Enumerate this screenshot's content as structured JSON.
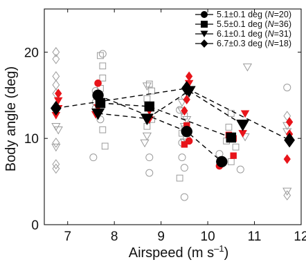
{
  "chart_data": {
    "type": "scatter",
    "title": "",
    "xlabel": "Airspeed (m s–1)",
    "xlabel_parts": [
      "Airspeed (m s",
      "–1",
      ")"
    ],
    "ylabel": "Body angle (deg)",
    "xlim": [
      6.5,
      12
    ],
    "ylim": [
      0,
      25
    ],
    "xticks": [
      "7",
      "8",
      "9",
      "10",
      "11",
      "12"
    ],
    "yticks": [
      "0",
      "10",
      "20"
    ],
    "grid": false,
    "legend_position": "top-right",
    "colors": {
      "axis": "#111111",
      "individual_gray": "#9a9a9a",
      "individual_red": "#e8141a",
      "mean_black": "#000000"
    },
    "series": [
      {
        "name": "5.1±0.1 deg (N=20)",
        "legend_parts": [
          "5.1±0.1 deg (",
          "N",
          "=20)"
        ],
        "marker": "circle",
        "mean_points": [
          {
            "x": 7.65,
            "y": 15.0
          },
          {
            "x": 9.55,
            "y": 10.8
          },
          {
            "x": 10.3,
            "y": 7.3
          }
        ],
        "individual_gray": [
          {
            "x": 7.6,
            "y": 15.5
          },
          {
            "x": 7.6,
            "y": 14.2
          },
          {
            "x": 7.6,
            "y": 13.5
          },
          {
            "x": 7.7,
            "y": 12.2
          },
          {
            "x": 7.55,
            "y": 7.8
          },
          {
            "x": 7.75,
            "y": 19.8
          },
          {
            "x": 8.75,
            "y": 7.8
          },
          {
            "x": 8.75,
            "y": 6.0
          },
          {
            "x": 9.4,
            "y": 13.3
          },
          {
            "x": 9.45,
            "y": 9.5
          },
          {
            "x": 9.45,
            "y": 7.8
          },
          {
            "x": 9.5,
            "y": 6.6
          },
          {
            "x": 9.5,
            "y": 3.2
          },
          {
            "x": 9.55,
            "y": 10.0
          },
          {
            "x": 10.25,
            "y": 8.2
          },
          {
            "x": 10.7,
            "y": 6.4
          },
          {
            "x": 11.7,
            "y": 15.9
          }
        ],
        "individual_red": [
          {
            "x": 7.65,
            "y": 16.4
          },
          {
            "x": 9.6,
            "y": 9.7
          },
          {
            "x": 10.25,
            "y": 6.8
          }
        ]
      },
      {
        "name": "5.5±0.1 deg (N=36)",
        "legend_parts": [
          "5.5±0.1 deg (",
          "N",
          "=36)"
        ],
        "marker": "square",
        "mean_points": [
          {
            "x": 7.7,
            "y": 14.1
          },
          {
            "x": 8.75,
            "y": 13.7
          },
          {
            "x": 10.5,
            "y": 10.1
          }
        ],
        "individual_gray": [
          {
            "x": 7.7,
            "y": 19.6
          },
          {
            "x": 7.75,
            "y": 18.4
          },
          {
            "x": 7.75,
            "y": 17.0
          },
          {
            "x": 7.7,
            "y": 15.8
          },
          {
            "x": 7.75,
            "y": 11.0
          },
          {
            "x": 7.8,
            "y": 9.1
          },
          {
            "x": 8.75,
            "y": 16.3
          },
          {
            "x": 8.8,
            "y": 15.5
          },
          {
            "x": 8.7,
            "y": 14.6
          },
          {
            "x": 8.8,
            "y": 12.2
          },
          {
            "x": 8.7,
            "y": 11.4
          },
          {
            "x": 9.45,
            "y": 10.6
          },
          {
            "x": 9.5,
            "y": 11.1
          },
          {
            "x": 9.5,
            "y": 12.6
          },
          {
            "x": 9.4,
            "y": 5.4
          },
          {
            "x": 10.4,
            "y": 9.7
          },
          {
            "x": 10.5,
            "y": 12.9
          },
          {
            "x": 10.5,
            "y": 7.3
          },
          {
            "x": 10.6,
            "y": 9.0
          },
          {
            "x": 10.45,
            "y": 11.3
          }
        ],
        "individual_red": [
          {
            "x": 9.55,
            "y": 11.5
          },
          {
            "x": 9.5,
            "y": 9.3
          },
          {
            "x": 10.45,
            "y": 10.4
          },
          {
            "x": 10.55,
            "y": 10.0
          },
          {
            "x": 10.55,
            "y": 8.0
          }
        ]
      },
      {
        "name": "6.1±0.1 deg (N=31)",
        "legend_parts": [
          "6.1±0.1 deg (",
          "N",
          "=31)"
        ],
        "marker": "triangle-down",
        "mean_points": [
          {
            "x": 7.65,
            "y": 12.9
          },
          {
            "x": 8.7,
            "y": 12.3
          },
          {
            "x": 9.6,
            "y": 15.5
          },
          {
            "x": 10.75,
            "y": 11.6
          }
        ],
        "individual_gray": [
          {
            "x": 6.75,
            "y": 11.4
          },
          {
            "x": 6.8,
            "y": 11.0
          },
          {
            "x": 6.75,
            "y": 9.0
          },
          {
            "x": 8.7,
            "y": 10.3
          },
          {
            "x": 8.65,
            "y": 9.5
          },
          {
            "x": 8.7,
            "y": 16.1
          },
          {
            "x": 9.45,
            "y": 14.2
          },
          {
            "x": 9.45,
            "y": 13.2
          },
          {
            "x": 9.5,
            "y": 11.4
          },
          {
            "x": 9.5,
            "y": 9.6
          },
          {
            "x": 9.55,
            "y": 12.2
          },
          {
            "x": 10.85,
            "y": 18.3
          },
          {
            "x": 10.8,
            "y": 10.2
          },
          {
            "x": 11.7,
            "y": 11.5
          },
          {
            "x": 11.7,
            "y": 10.8
          },
          {
            "x": 11.7,
            "y": 3.9
          }
        ],
        "individual_red": [
          {
            "x": 6.8,
            "y": 14.4
          },
          {
            "x": 6.75,
            "y": 12.7
          },
          {
            "x": 6.8,
            "y": 13.5
          },
          {
            "x": 7.65,
            "y": 13.6
          },
          {
            "x": 7.6,
            "y": 12.8
          },
          {
            "x": 8.75,
            "y": 13.2
          },
          {
            "x": 8.75,
            "y": 12.2
          },
          {
            "x": 9.6,
            "y": 16.4
          },
          {
            "x": 10.8,
            "y": 12.9
          },
          {
            "x": 10.75,
            "y": 10.6
          }
        ]
      },
      {
        "name": "6.7±0.3 deg (N=18)",
        "legend_parts": [
          "6.7±0.3 deg (",
          "N",
          "=18)"
        ],
        "marker": "diamond",
        "mean_points": [
          {
            "x": 6.75,
            "y": 13.5
          },
          {
            "x": 9.55,
            "y": 15.8
          },
          {
            "x": 11.75,
            "y": 9.8
          }
        ],
        "individual_gray": [
          {
            "x": 6.75,
            "y": 20.0
          },
          {
            "x": 6.75,
            "y": 19.2
          },
          {
            "x": 6.75,
            "y": 17.2
          },
          {
            "x": 6.75,
            "y": 16.2
          },
          {
            "x": 6.75,
            "y": 15.2
          },
          {
            "x": 6.75,
            "y": 9.5
          },
          {
            "x": 6.75,
            "y": 7.0
          },
          {
            "x": 6.75,
            "y": 6.5
          },
          {
            "x": 9.5,
            "y": 14.8
          },
          {
            "x": 11.7,
            "y": 12.6
          },
          {
            "x": 11.7,
            "y": 3.4
          }
        ],
        "individual_red": [
          {
            "x": 6.8,
            "y": 15.2
          },
          {
            "x": 9.6,
            "y": 17.2
          },
          {
            "x": 9.55,
            "y": 14.5
          },
          {
            "x": 9.5,
            "y": 13.2
          },
          {
            "x": 11.75,
            "y": 11.9
          },
          {
            "x": 11.75,
            "y": 10.5
          },
          {
            "x": 11.7,
            "y": 7.6
          }
        ]
      }
    ]
  }
}
